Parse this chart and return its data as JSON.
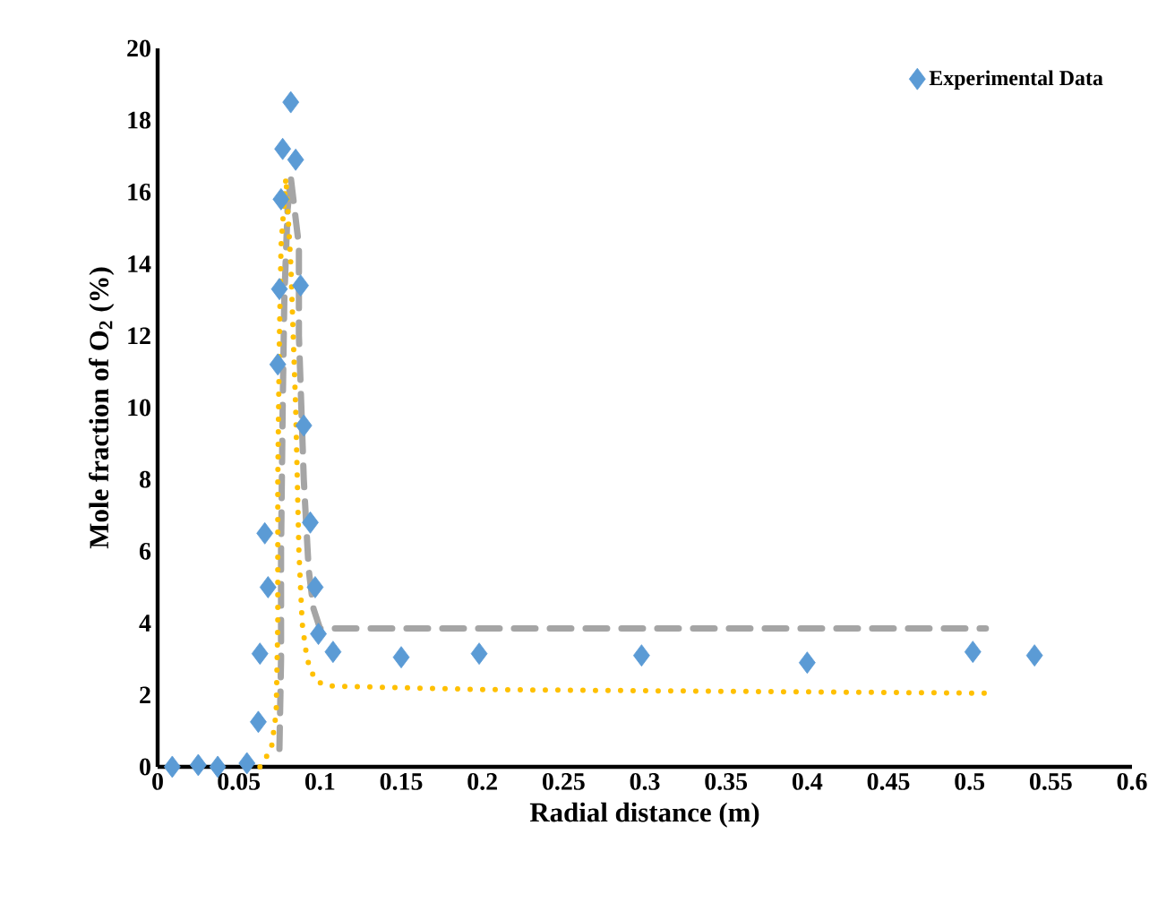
{
  "chart_data": {
    "type": "scatter",
    "xlabel": "Radial distance (m)",
    "ylabel": "Mole fraction of O$_{2}$ (%)",
    "xlim": [
      0,
      0.6
    ],
    "ylim": [
      0,
      20
    ],
    "xticks": [
      0,
      0.05,
      0.1,
      0.15,
      0.2,
      0.25,
      0.3,
      0.35,
      0.4,
      0.45,
      0.5,
      0.55,
      0.6
    ],
    "yticks": [
      0,
      2,
      4,
      6,
      8,
      10,
      12,
      14,
      16,
      18,
      20
    ],
    "grid": false,
    "legend": "top right",
    "series": [
      {
        "name": "Experimental Data",
        "marker": "diamond",
        "color": "#5b9bd5",
        "x": [
          0.009,
          0.025,
          0.037,
          0.055,
          0.062,
          0.063,
          0.066,
          0.068,
          0.074,
          0.075,
          0.076,
          0.077,
          0.082,
          0.085,
          0.088,
          0.09,
          0.094,
          0.097,
          0.099,
          0.108,
          0.15,
          0.198,
          0.298,
          0.4,
          0.502,
          0.54
        ],
        "values": [
          0,
          0.05,
          0,
          0.1,
          1.25,
          3.15,
          6.5,
          5.0,
          11.2,
          13.3,
          15.8,
          17.2,
          18.5,
          16.9,
          13.4,
          9.5,
          6.8,
          5.0,
          3.7,
          3.2,
          3.05,
          3.15,
          3.1,
          2.9,
          3.2,
          3.1
        ]
      },
      {
        "type": "line",
        "line_style": "dashed",
        "marker": "none",
        "color": "#a5a5a5",
        "x": [
          0.075,
          0.076,
          0.076,
          0.077,
          0.078,
          0.08,
          0.082,
          0.087,
          0.087,
          0.09,
          0.093,
          0.096,
          0.1,
          0.51
        ],
        "values": [
          0.5,
          3,
          6,
          10,
          13,
          15.5,
          16.4,
          14.5,
          12,
          8,
          5.5,
          4.4,
          3.85,
          3.85
        ]
      },
      {
        "type": "line",
        "line_style": "dotted",
        "marker": "none",
        "color": "#ffc000",
        "x": [
          0.063,
          0.07,
          0.073,
          0.074,
          0.074,
          0.075,
          0.076,
          0.079,
          0.082,
          0.085,
          0.087,
          0.089,
          0.092,
          0.097,
          0.105,
          0.2,
          0.51
        ],
        "values": [
          0,
          0.5,
          1.5,
          4,
          8,
          12,
          14.5,
          16.4,
          14,
          10,
          6,
          4,
          3,
          2.4,
          2.25,
          2.15,
          2.05
        ]
      }
    ]
  }
}
